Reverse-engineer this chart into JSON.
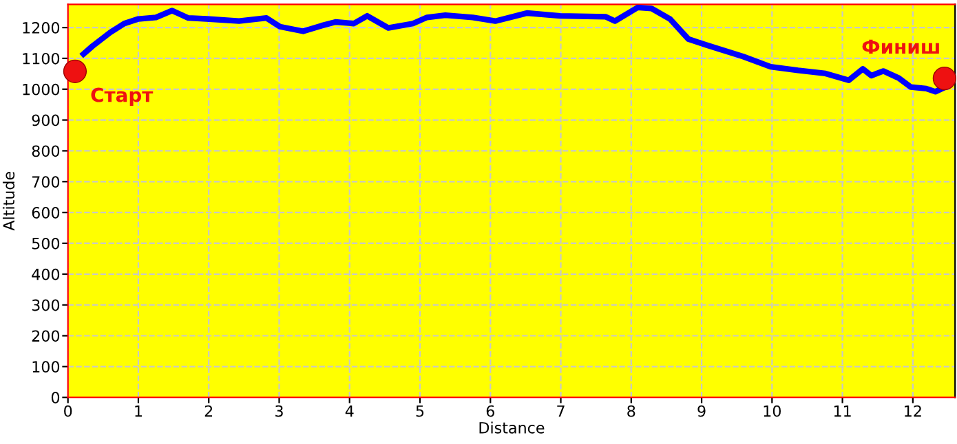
{
  "chart_data": {
    "type": "line",
    "xlabel": "Distance",
    "ylabel": "Altitude",
    "xlim": [
      0,
      12.6
    ],
    "ylim": [
      0,
      1275
    ],
    "xticks": [
      0,
      1,
      2,
      3,
      4,
      5,
      6,
      7,
      8,
      9,
      10,
      11,
      12
    ],
    "yticks": [
      0,
      100,
      200,
      300,
      400,
      500,
      600,
      700,
      800,
      900,
      1000,
      1100,
      1200
    ],
    "grid": true,
    "legend": false,
    "series": [
      {
        "color": "#0000ff",
        "line_style": "solid",
        "marker": "none",
        "x": [
          0.22,
          0.35,
          0.6,
          0.8,
          1.0,
          1.25,
          1.48,
          1.71,
          1.97,
          2.43,
          2.82,
          3.01,
          3.34,
          3.6,
          3.8,
          4.06,
          4.25,
          4.55,
          4.9,
          5.1,
          5.36,
          5.75,
          6.07,
          6.52,
          6.99,
          7.64,
          7.77,
          8.09,
          8.29,
          8.55,
          8.81,
          9.06,
          9.59,
          9.98,
          10.37,
          10.76,
          11.09,
          11.29,
          11.41,
          11.58,
          11.8,
          11.97,
          12.19,
          12.32,
          12.46
        ],
        "values": [
          1114,
          1140,
          1184,
          1213,
          1228,
          1233,
          1255,
          1231,
          1228,
          1221,
          1231,
          1203,
          1188,
          1206,
          1218,
          1213,
          1238,
          1199,
          1213,
          1233,
          1240,
          1233,
          1221,
          1247,
          1238,
          1235,
          1221,
          1265,
          1262,
          1228,
          1163,
          1144,
          1106,
          1073,
          1061,
          1051,
          1029,
          1066,
          1044,
          1059,
          1036,
          1007,
          1002,
          992,
          1007
        ]
      },
      {
        "type": "scatter",
        "color": "#ee1111",
        "marker": "circle",
        "x": [
          0.1,
          12.45
        ],
        "values": [
          1058,
          1035
        ]
      }
    ],
    "annotations": [
      {
        "text": "Старт",
        "x": 0.1,
        "y": 1058
      },
      {
        "text": "Финиш",
        "x": 12.45,
        "y": 1035
      }
    ]
  }
}
